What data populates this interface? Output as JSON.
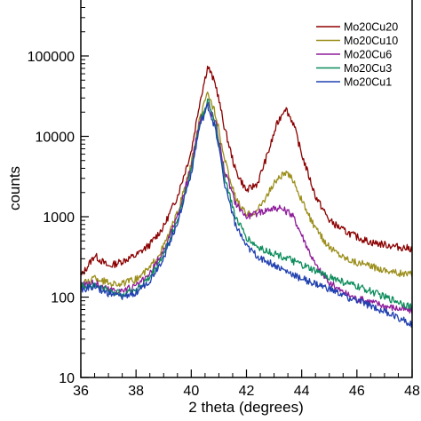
{
  "chart_data": {
    "type": "line",
    "title": "",
    "xlabel": "2 theta (degrees)",
    "ylabel": "counts",
    "xlim": [
      36,
      48
    ],
    "ylim": [
      10,
      200000
    ],
    "yscale": "log",
    "grid": false,
    "legend_position": "top-right",
    "x_ticks": [
      36,
      38,
      40,
      42,
      44,
      46,
      48
    ],
    "y_ticks": [
      10,
      100,
      1000,
      10000,
      100000
    ],
    "series": [
      {
        "name": "Mo20Cu20",
        "color": "#8b0000",
        "x": [
          36,
          36.5,
          37,
          37.5,
          38,
          38.5,
          39,
          39.5,
          40,
          40.3,
          40.6,
          40.9,
          41.2,
          41.6,
          42,
          42.4,
          42.8,
          43.1,
          43.4,
          43.7,
          44,
          44.5,
          45,
          45.5,
          46,
          46.5,
          47,
          47.5,
          48
        ],
        "y": [
          180,
          330,
          240,
          280,
          330,
          450,
          750,
          1800,
          6500,
          26000,
          75000,
          42000,
          13000,
          3800,
          2100,
          2600,
          6500,
          14000,
          23000,
          14500,
          6000,
          1800,
          900,
          680,
          560,
          480,
          450,
          420,
          400
        ]
      },
      {
        "name": "Mo20Cu10",
        "color": "#9b8e1a",
        "x": [
          36,
          36.5,
          37,
          37.5,
          38,
          38.5,
          39,
          39.5,
          40,
          40.3,
          40.6,
          40.9,
          41.2,
          41.6,
          42,
          42.4,
          42.8,
          43.1,
          43.4,
          43.7,
          44,
          44.5,
          45,
          45.5,
          46,
          46.5,
          47,
          47.5,
          48
        ],
        "y": [
          140,
          175,
          150,
          145,
          165,
          230,
          430,
          1100,
          4500,
          16000,
          35000,
          18000,
          5200,
          1700,
          1050,
          1200,
          2000,
          2900,
          3500,
          2900,
          1600,
          700,
          420,
          320,
          270,
          240,
          220,
          200,
          190
        ]
      },
      {
        "name": "Mo20Cu6",
        "color": "#8e1b9a",
        "x": [
          36,
          36.5,
          37,
          37.5,
          38,
          38.5,
          39,
          39.5,
          40,
          40.3,
          40.6,
          40.9,
          41.2,
          41.6,
          42,
          42.4,
          42.8,
          43.1,
          43.4,
          43.7,
          44,
          44.5,
          45,
          45.5,
          46,
          46.5,
          47,
          47.5,
          48
        ],
        "y": [
          145,
          150,
          125,
          120,
          135,
          190,
          380,
          1000,
          4200,
          15000,
          26000,
          14000,
          3800,
          1500,
          1000,
          1100,
          1250,
          1280,
          1200,
          1000,
          600,
          250,
          150,
          115,
          95,
          88,
          78,
          72,
          68
        ]
      },
      {
        "name": "Mo20Cu3",
        "color": "#0c8c5c",
        "x": [
          36,
          36.5,
          37,
          37.5,
          38,
          38.5,
          39,
          39.5,
          40,
          40.3,
          40.6,
          40.9,
          41.2,
          41.6,
          42,
          42.4,
          42.8,
          43.1,
          43.4,
          43.7,
          44,
          44.5,
          45,
          45.5,
          46,
          46.5,
          47,
          47.5,
          48
        ],
        "y": [
          140,
          140,
          120,
          110,
          125,
          175,
          340,
          900,
          3800,
          14000,
          28000,
          13000,
          3200,
          1000,
          550,
          420,
          370,
          340,
          310,
          280,
          250,
          210,
          180,
          155,
          135,
          118,
          100,
          88,
          75
        ]
      },
      {
        "name": "Mo20Cu1",
        "color": "#2040b0",
        "x": [
          36,
          36.5,
          37,
          37.5,
          38,
          38.5,
          39,
          39.5,
          40,
          40.3,
          40.6,
          40.9,
          41.2,
          41.6,
          42,
          42.4,
          42.8,
          43.1,
          43.4,
          43.7,
          44,
          44.5,
          45,
          45.5,
          46,
          46.5,
          47,
          47.5,
          48
        ],
        "y": [
          125,
          135,
          110,
          100,
          115,
          160,
          310,
          850,
          3500,
          13000,
          24000,
          11500,
          2700,
          800,
          420,
          320,
          270,
          240,
          210,
          190,
          170,
          145,
          125,
          105,
          90,
          78,
          66,
          56,
          46
        ]
      }
    ]
  }
}
